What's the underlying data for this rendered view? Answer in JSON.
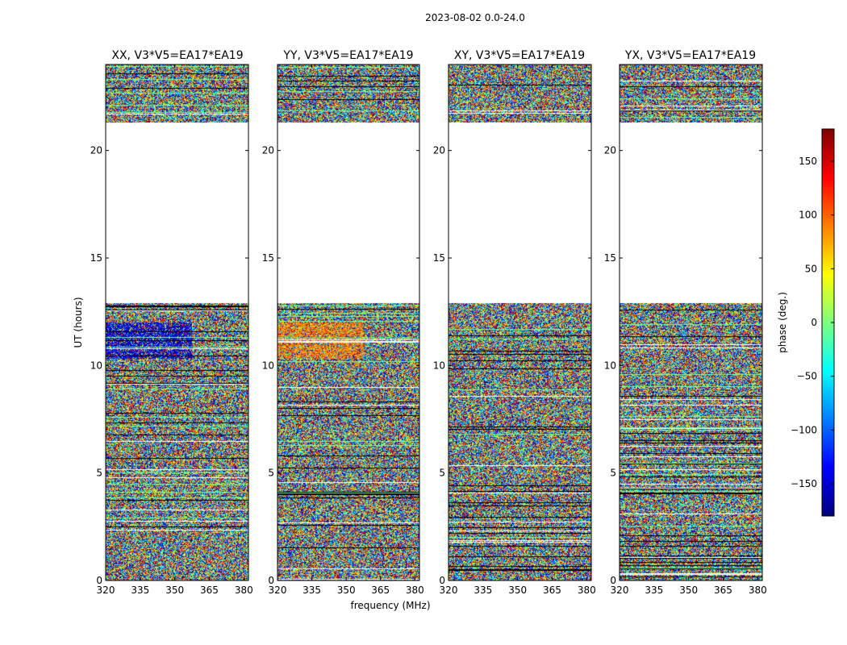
{
  "chart_data": {
    "type": "heatmap",
    "title": "2023-08-02 0.0-24.0",
    "xlabel": "frequency (MHz)",
    "ylabel": "UT (hours)",
    "xlim": [
      320,
      382
    ],
    "ylim": [
      0,
      24
    ],
    "xticks": [
      320,
      335,
      350,
      365,
      380
    ],
    "yticks": [
      0,
      5,
      10,
      15,
      20
    ],
    "panels": [
      {
        "title": "XX, V3*V5=EA17*EA19",
        "polarization": "XX",
        "bias_band": [
          10.3,
          12.0
        ],
        "bias_value": -150
      },
      {
        "title": "YY, V3*V5=EA17*EA19",
        "polarization": "YY",
        "bias_band": [
          10.3,
          12.0
        ],
        "bias_value": 90
      },
      {
        "title": "XY, V3*V5=EA17*EA19",
        "polarization": "XY",
        "bias_band": null,
        "bias_value": null
      },
      {
        "title": "YX, V3*V5=EA17*EA19",
        "polarization": "YX",
        "bias_band": null,
        "bias_value": null
      }
    ],
    "data_ranges_hours": [
      [
        0,
        12.9
      ],
      [
        21.3,
        24.0
      ]
    ],
    "blank_ranges_hours": [
      [
        12.9,
        21.3
      ]
    ],
    "colorbar": {
      "label": "phase (deg.)",
      "range": [
        -180,
        180
      ],
      "ticks": [
        -150,
        -100,
        -50,
        0,
        50,
        100,
        150
      ],
      "tick_labels": [
        "−150",
        "−100",
        "−50",
        "0",
        "50",
        "100",
        "150"
      ],
      "colormap": "jet"
    }
  }
}
